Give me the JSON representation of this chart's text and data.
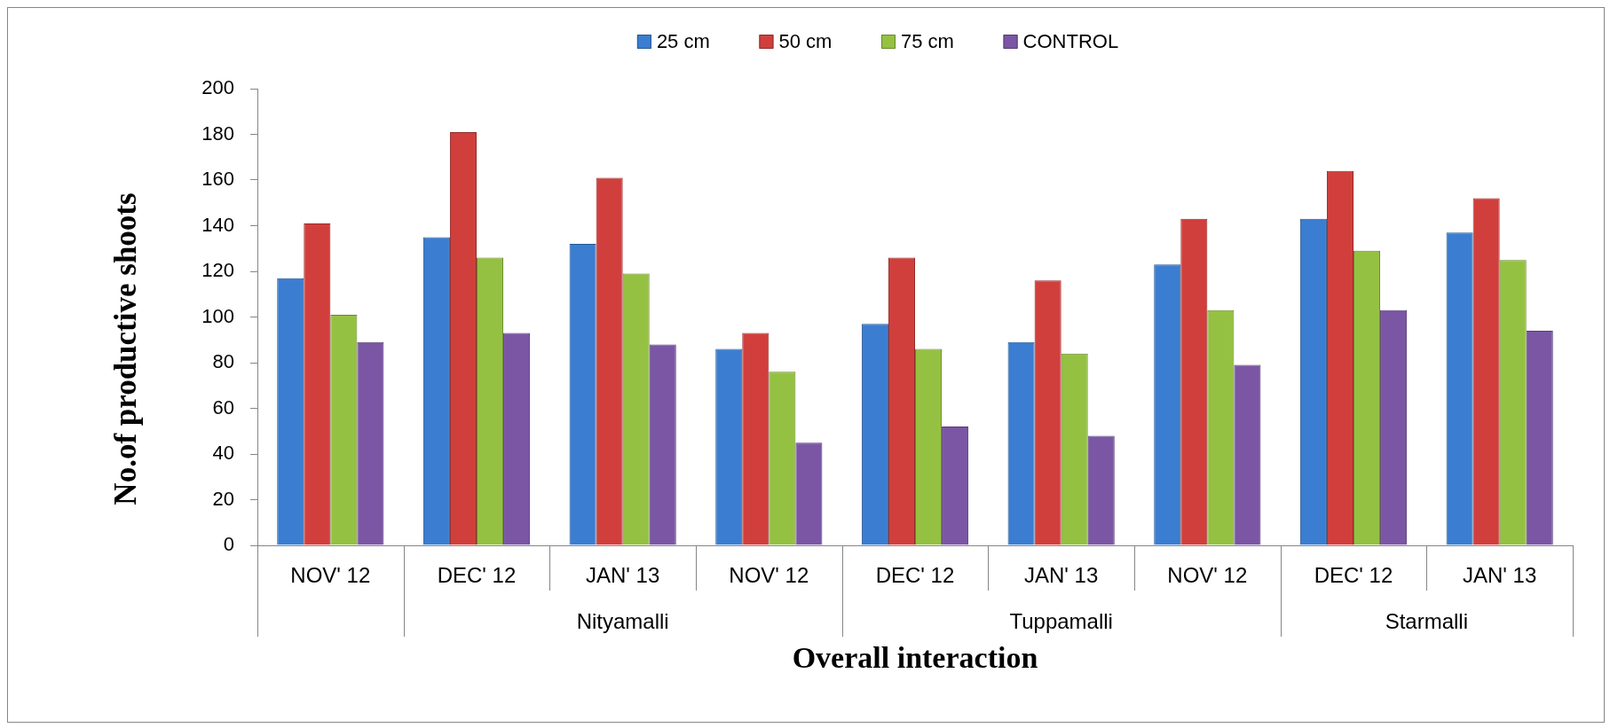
{
  "chart_data": {
    "type": "bar",
    "categories": [
      "NOV' 12",
      "DEC' 12",
      "JAN' 13",
      "NOV' 12",
      "DEC' 12",
      "JAN' 13",
      "NOV' 12",
      "DEC' 12",
      "JAN' 13"
    ],
    "series": [
      {
        "name": "25 cm",
        "color": "#3b7dd0",
        "values": [
          117,
          135,
          132,
          86,
          97,
          89,
          123,
          143,
          137
        ]
      },
      {
        "name": "50 cm",
        "color": "#d13f3c",
        "values": [
          141,
          181,
          161,
          93,
          126,
          116,
          143,
          164,
          152
        ]
      },
      {
        "name": "75 cm",
        "color": "#95c142",
        "values": [
          101,
          126,
          119,
          76,
          86,
          84,
          103,
          129,
          125
        ]
      },
      {
        "name": "CONTROL",
        "color": "#7b56a5",
        "values": [
          89,
          93,
          88,
          45,
          52,
          48,
          79,
          103,
          94
        ]
      }
    ],
    "xlabel": "Overall interaction",
    "ylabel": "No.of productive shoots",
    "ylim": [
      0,
      200
    ],
    "yticks": [
      0,
      20,
      40,
      60,
      80,
      100,
      120,
      140,
      160,
      180,
      200
    ],
    "legend": "top",
    "annotations": [
      "Nityamalli",
      "Tuppamalli",
      "Starmalli"
    ]
  }
}
